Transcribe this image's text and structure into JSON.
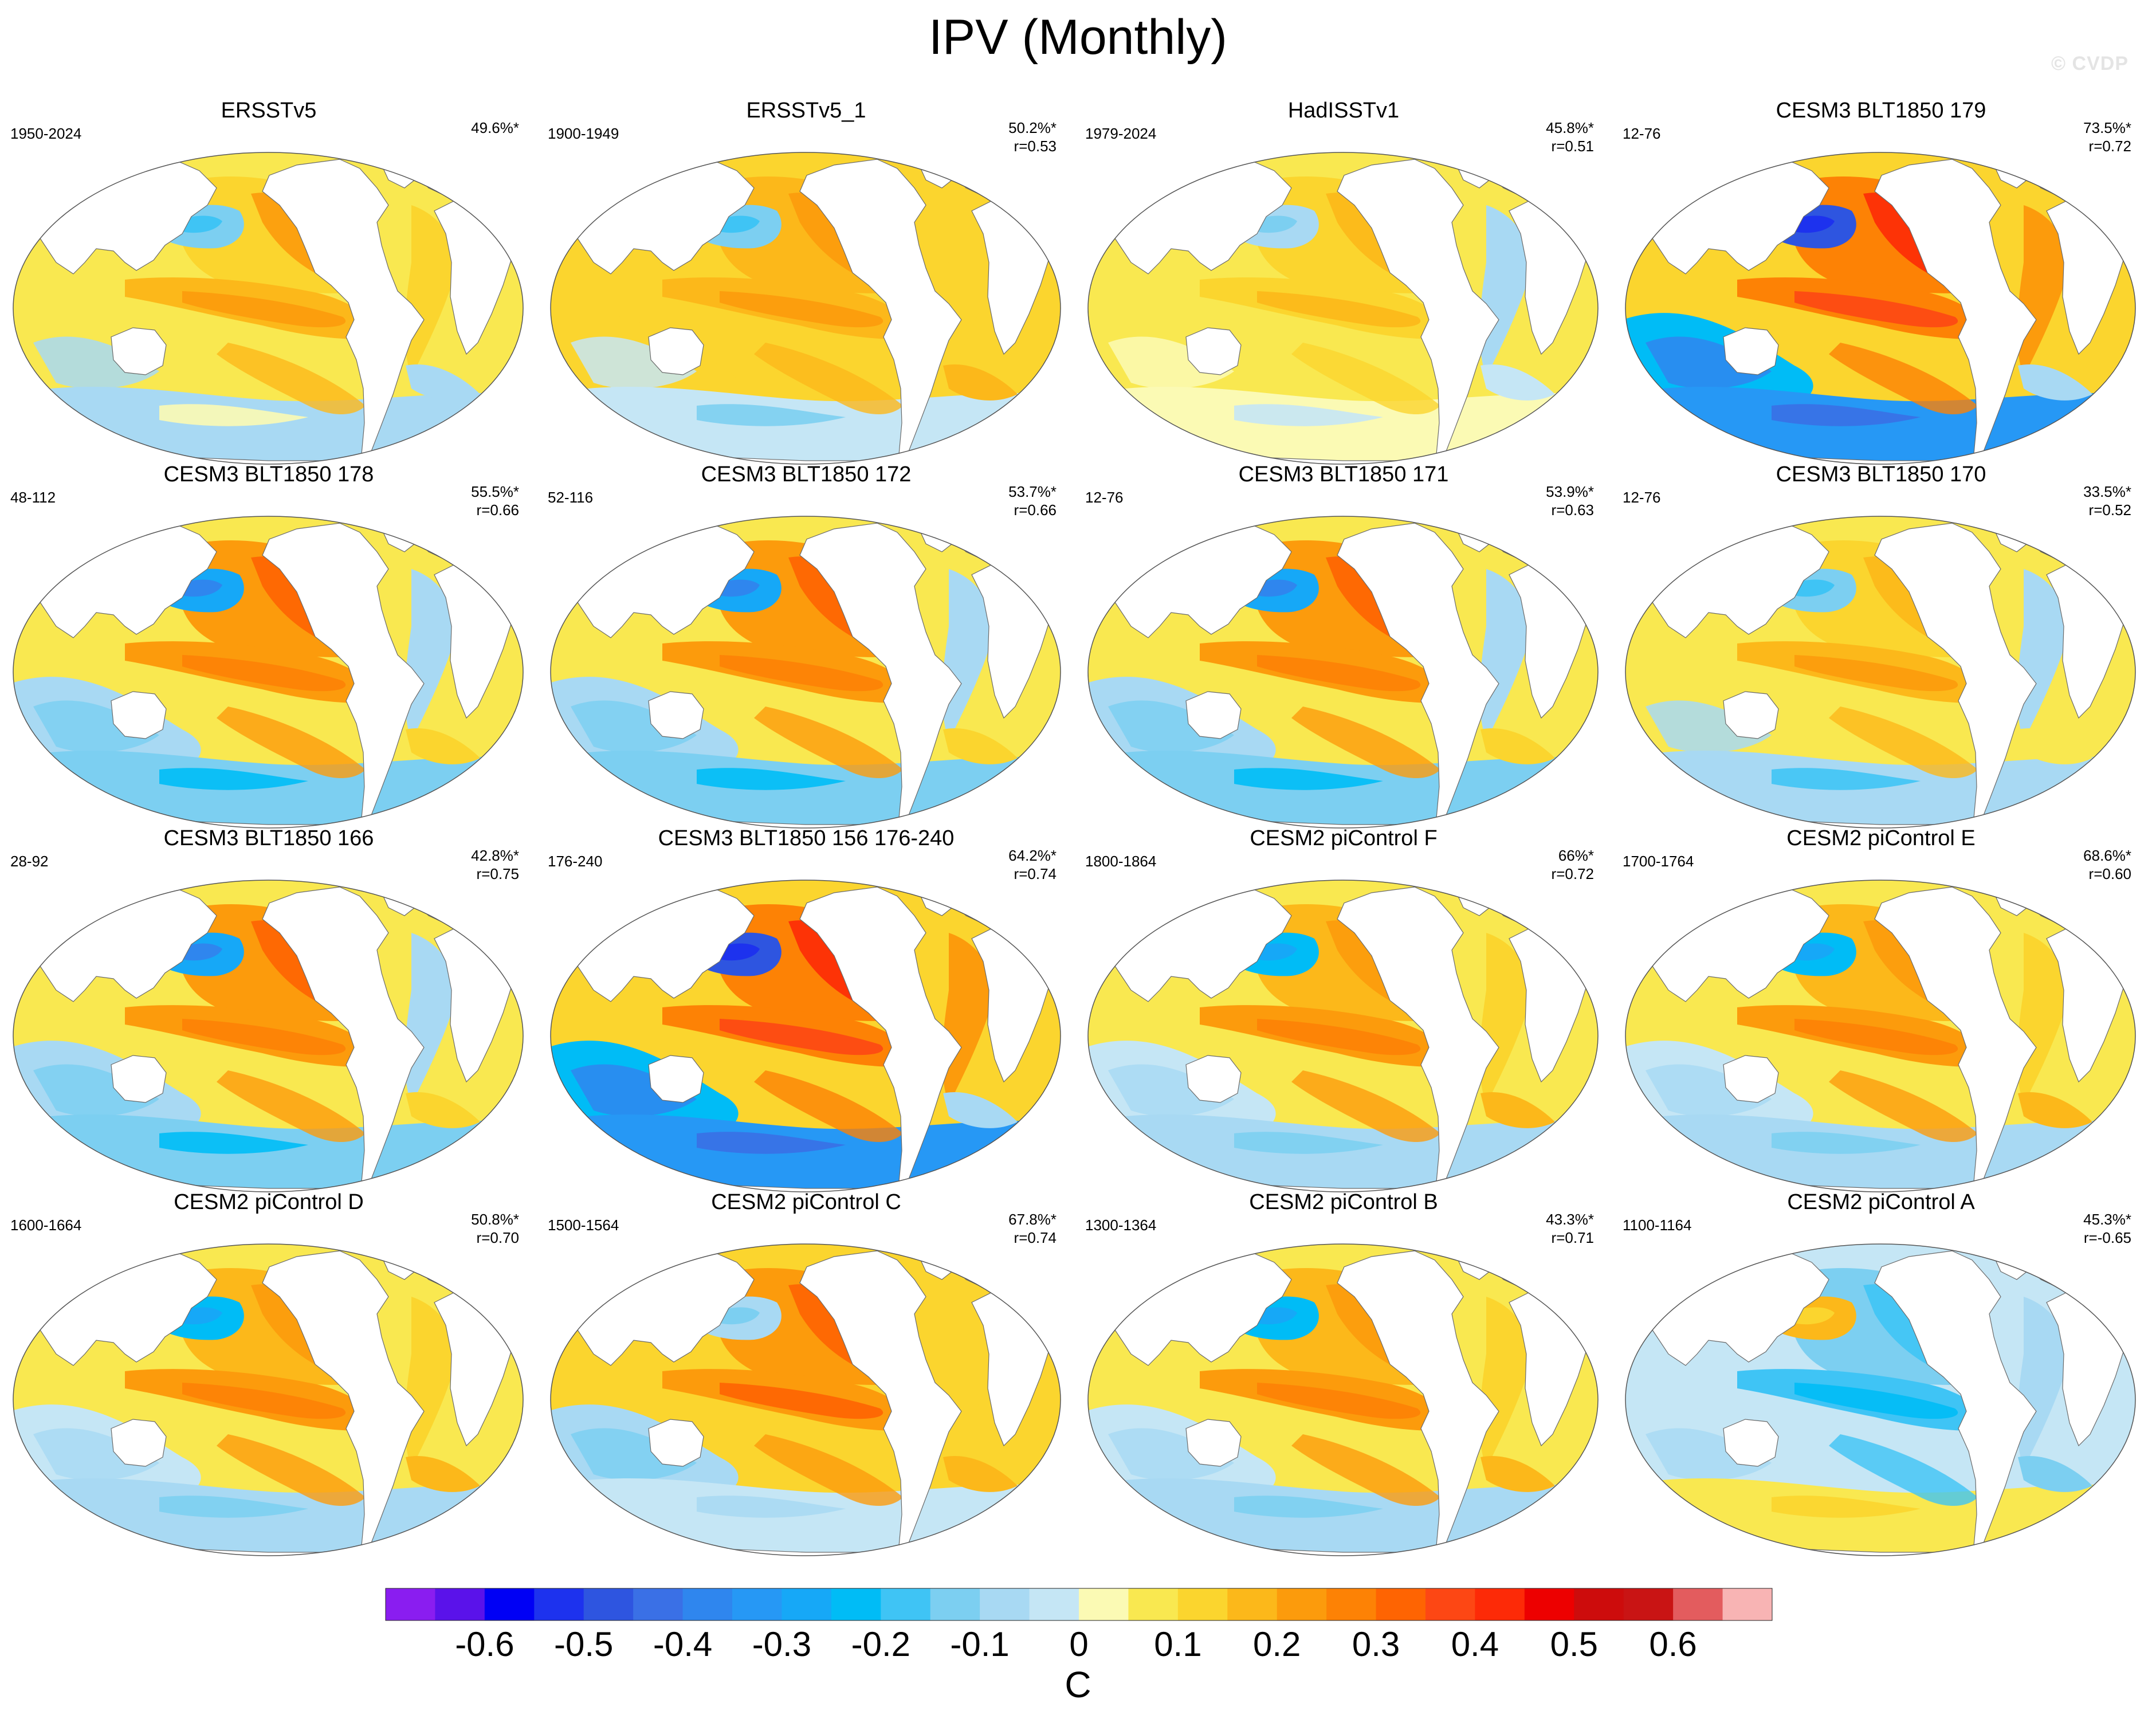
{
  "title": "IPV (Monthly)",
  "watermark": "© CVDP",
  "panels": [
    {
      "title": "ERSSTv5",
      "years": "1950-2024",
      "pct": "49.6%*",
      "r": "",
      "pattern": "obs"
    },
    {
      "title": "ERSSTv5_1",
      "years": "1900-1949",
      "pct": "50.2%*",
      "r": "r=0.53",
      "pattern": "obs_warm"
    },
    {
      "title": "HadISSTv1",
      "years": "1979-2024",
      "pct": "45.8%*",
      "r": "r=0.51",
      "pattern": "obs_weak"
    },
    {
      "title": "CESM3 BLT1850 179",
      "years": "12-76",
      "pct": "73.5%*",
      "r": "r=0.72",
      "pattern": "strong"
    },
    {
      "title": "CESM3 BLT1850 178",
      "years": "48-112",
      "pct": "55.5%*",
      "r": "r=0.66",
      "pattern": "model"
    },
    {
      "title": "CESM3 BLT1850 172",
      "years": "52-116",
      "pct": "53.7%*",
      "r": "r=0.66",
      "pattern": "model"
    },
    {
      "title": "CESM3 BLT1850 171",
      "years": "12-76",
      "pct": "53.9%*",
      "r": "r=0.63",
      "pattern": "model"
    },
    {
      "title": "CESM3 BLT1850 170",
      "years": "12-76",
      "pct": "33.5%*",
      "r": "r=0.52",
      "pattern": "model_weak"
    },
    {
      "title": "CESM3 BLT1850 166",
      "years": "28-92",
      "pct": "42.8%*",
      "r": "r=0.75",
      "pattern": "model"
    },
    {
      "title": "CESM3 BLT1850 156 176-240",
      "years": "176-240",
      "pct": "64.2%*",
      "r": "r=0.74",
      "pattern": "strong"
    },
    {
      "title": "CESM2 piControl F",
      "years": "1800-1864",
      "pct": "66%*",
      "r": "r=0.72",
      "pattern": "cesm2"
    },
    {
      "title": "CESM2 piControl E",
      "years": "1700-1764",
      "pct": "68.6%*",
      "r": "r=0.60",
      "pattern": "cesm2"
    },
    {
      "title": "CESM2 piControl D",
      "years": "1600-1664",
      "pct": "50.8%*",
      "r": "r=0.70",
      "pattern": "cesm2"
    },
    {
      "title": "CESM2 piControl C",
      "years": "1500-1564",
      "pct": "67.8%*",
      "r": "r=0.74",
      "pattern": "cesm2_warm"
    },
    {
      "title": "CESM2 piControl B",
      "years": "1300-1364",
      "pct": "43.3%*",
      "r": "r=0.71",
      "pattern": "cesm2"
    },
    {
      "title": "CESM2 piControl A",
      "years": "1100-1164",
      "pct": "45.3%*",
      "r": "r=-0.65",
      "pattern": "negative"
    }
  ],
  "colorbar": {
    "colors": [
      "#8a1df0",
      "#5a12ea",
      "#0000f5",
      "#1d32ee",
      "#2e55e0",
      "#3a70e6",
      "#2f86ee",
      "#2698f5",
      "#16a8f7",
      "#00bcf6",
      "#3fc4f5",
      "#7ccff1",
      "#a8d9f3",
      "#c5e6f5",
      "#fbfab4",
      "#f9e850",
      "#fbd52e",
      "#fcb81a",
      "#fc9b0c",
      "#fd8205",
      "#fe6402",
      "#fd4714",
      "#fd2a07",
      "#ed0000",
      "#cd0c0c",
      "#c91414",
      "#e35c5e",
      "#f8b4b4"
    ],
    "labels": [
      "-0.6",
      "-0.5",
      "-0.4",
      "-0.3",
      "-0.2",
      "-0.1",
      "0",
      "0.1",
      "0.2",
      "0.3",
      "0.4",
      "0.5",
      "0.6"
    ],
    "unit": "C"
  }
}
